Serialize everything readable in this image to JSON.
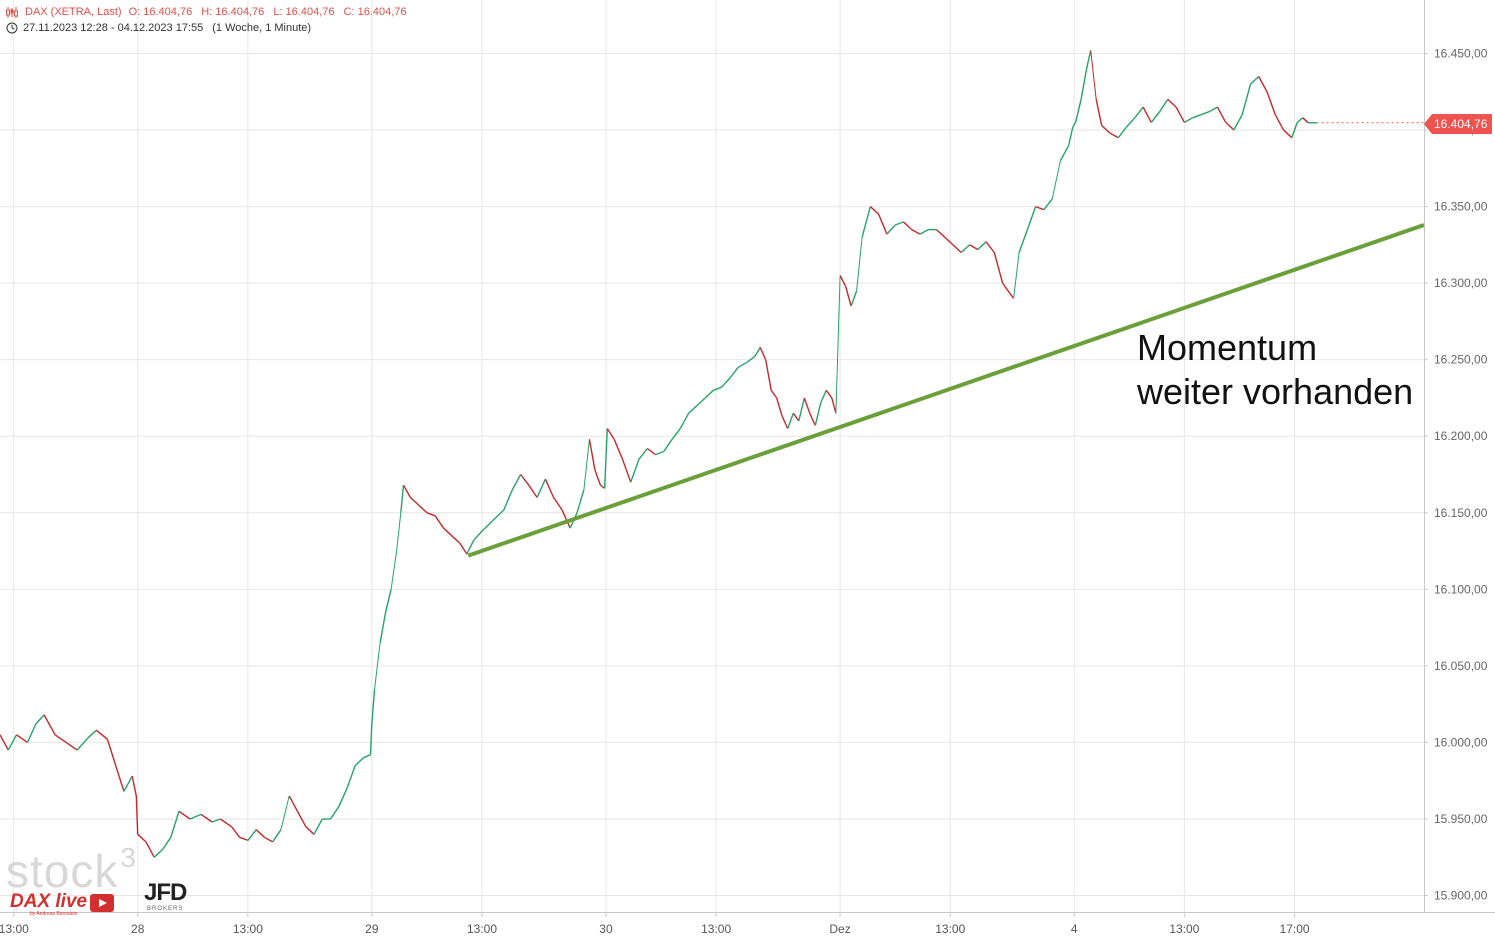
{
  "header": {
    "symbol": "DAX (XETRA, Last)",
    "open": "O: 16.404,76",
    "high": "H: 16.404,76",
    "low": "L: 16.404,76",
    "close": "C: 16.404,76",
    "period": "27.11.2023 12:28 - 04.12.2023 17:55",
    "interval": "(1 Woche, 1 Minute)"
  },
  "last_price_label": "16.404,76",
  "annotation_lines": [
    "Momentum",
    "weiter vorhanden"
  ],
  "watermark": "stock",
  "watermark_sup": "3",
  "branding": {
    "daxlive": "DAX live",
    "daxlive_sub": "by Andreas Bernstein",
    "jfd": "JFD",
    "jfd_sub": "BROKERS"
  },
  "colors": {
    "up": "#26a269",
    "down": "#c62828",
    "trendline": "#6a9f3a",
    "price_tag": "#ef5350",
    "grid": "#e6e6e6"
  },
  "chart_data": {
    "type": "line",
    "title": "DAX (XETRA, Last)",
    "ylim": [
      15880,
      16470
    ],
    "yticks": [
      15900,
      15950,
      16000,
      16050,
      16100,
      16150,
      16200,
      16250,
      16300,
      16350,
      16400,
      16450
    ],
    "ytick_labels": [
      "15.900,00",
      "15.950,00",
      "16.000,00",
      "16.050,00",
      "16.100,00",
      "16.150,00",
      "16.200,00",
      "16.250,00",
      "16.300,00",
      "16.350,00",
      "16.400,00",
      "16.450,00"
    ],
    "x_ticks": [
      {
        "label": "13:00",
        "t": 0.5
      },
      {
        "label": "28",
        "t": 5.0
      },
      {
        "label": "13:00",
        "t": 9.0
      },
      {
        "label": "29",
        "t": 13.5
      },
      {
        "label": "13:00",
        "t": 17.5
      },
      {
        "label": "30",
        "t": 22.0
      },
      {
        "label": "13:00",
        "t": 26.0
      },
      {
        "label": "Dez",
        "t": 30.5
      },
      {
        "label": "13:00",
        "t": 34.5
      },
      {
        "label": "4",
        "t": 39.0
      },
      {
        "label": "13:00",
        "t": 43.0
      },
      {
        "label": "17:00",
        "t": 47.0
      }
    ],
    "series": [
      {
        "values": [
          [
            0.0,
            16005
          ],
          [
            0.3,
            15995
          ],
          [
            0.6,
            16005
          ],
          [
            1.0,
            16000
          ],
          [
            1.3,
            16012
          ],
          [
            1.6,
            16018
          ],
          [
            2.0,
            16005
          ],
          [
            2.4,
            16000
          ],
          [
            2.8,
            15995
          ],
          [
            3.2,
            16003
          ],
          [
            3.5,
            16008
          ],
          [
            3.9,
            16002
          ],
          [
            4.2,
            15985
          ],
          [
            4.5,
            15968
          ],
          [
            4.8,
            15978
          ],
          [
            4.95,
            15965
          ],
          [
            5.0,
            15940
          ],
          [
            5.3,
            15935
          ],
          [
            5.6,
            15925
          ],
          [
            5.9,
            15930
          ],
          [
            6.2,
            15938
          ],
          [
            6.5,
            15955
          ],
          [
            6.9,
            15950
          ],
          [
            7.3,
            15953
          ],
          [
            7.7,
            15948
          ],
          [
            8.0,
            15950
          ],
          [
            8.4,
            15945
          ],
          [
            8.7,
            15938
          ],
          [
            9.0,
            15936
          ],
          [
            9.3,
            15943
          ],
          [
            9.6,
            15938
          ],
          [
            9.9,
            15935
          ],
          [
            10.2,
            15943
          ],
          [
            10.5,
            15965
          ],
          [
            10.8,
            15955
          ],
          [
            11.1,
            15945
          ],
          [
            11.4,
            15940
          ],
          [
            11.7,
            15950
          ],
          [
            12.0,
            15950
          ],
          [
            12.3,
            15958
          ],
          [
            12.6,
            15970
          ],
          [
            12.9,
            15985
          ],
          [
            13.2,
            15990
          ],
          [
            13.45,
            15992
          ],
          [
            13.5,
            16012
          ],
          [
            13.6,
            16035
          ],
          [
            13.8,
            16065
          ],
          [
            14.0,
            16085
          ],
          [
            14.2,
            16100
          ],
          [
            14.4,
            16125
          ],
          [
            14.55,
            16150
          ],
          [
            14.65,
            16168
          ],
          [
            14.9,
            16160
          ],
          [
            15.2,
            16155
          ],
          [
            15.5,
            16150
          ],
          [
            15.8,
            16148
          ],
          [
            16.1,
            16140
          ],
          [
            16.4,
            16135
          ],
          [
            16.7,
            16130
          ],
          [
            16.95,
            16123
          ],
          [
            17.2,
            16132
          ],
          [
            17.5,
            16138
          ],
          [
            17.9,
            16145
          ],
          [
            18.3,
            16152
          ],
          [
            18.6,
            16165
          ],
          [
            18.9,
            16175
          ],
          [
            19.2,
            16168
          ],
          [
            19.5,
            16160
          ],
          [
            19.8,
            16172
          ],
          [
            20.1,
            16160
          ],
          [
            20.4,
            16152
          ],
          [
            20.7,
            16140
          ],
          [
            20.95,
            16150
          ],
          [
            21.2,
            16165
          ],
          [
            21.4,
            16198
          ],
          [
            21.6,
            16178
          ],
          [
            21.8,
            16168
          ],
          [
            21.95,
            16166
          ],
          [
            22.05,
            16205
          ],
          [
            22.3,
            16198
          ],
          [
            22.6,
            16185
          ],
          [
            22.9,
            16170
          ],
          [
            23.2,
            16185
          ],
          [
            23.5,
            16192
          ],
          [
            23.8,
            16188
          ],
          [
            24.1,
            16190
          ],
          [
            24.4,
            16198
          ],
          [
            24.7,
            16205
          ],
          [
            25.0,
            16215
          ],
          [
            25.3,
            16220
          ],
          [
            25.6,
            16225
          ],
          [
            25.9,
            16230
          ],
          [
            26.2,
            16232
          ],
          [
            26.5,
            16238
          ],
          [
            26.8,
            16245
          ],
          [
            27.1,
            16248
          ],
          [
            27.4,
            16252
          ],
          [
            27.6,
            16258
          ],
          [
            27.8,
            16250
          ],
          [
            28.0,
            16230
          ],
          [
            28.2,
            16225
          ],
          [
            28.4,
            16213
          ],
          [
            28.6,
            16205
          ],
          [
            28.8,
            16215
          ],
          [
            29.0,
            16210
          ],
          [
            29.2,
            16225
          ],
          [
            29.4,
            16215
          ],
          [
            29.6,
            16207
          ],
          [
            29.8,
            16222
          ],
          [
            30.0,
            16230
          ],
          [
            30.2,
            16225
          ],
          [
            30.35,
            16215
          ],
          [
            30.5,
            16305
          ],
          [
            30.7,
            16298
          ],
          [
            30.9,
            16285
          ],
          [
            31.1,
            16295
          ],
          [
            31.3,
            16330
          ],
          [
            31.6,
            16350
          ],
          [
            31.9,
            16345
          ],
          [
            32.2,
            16332
          ],
          [
            32.5,
            16338
          ],
          [
            32.8,
            16340
          ],
          [
            33.1,
            16335
          ],
          [
            33.4,
            16332
          ],
          [
            33.7,
            16335
          ],
          [
            34.0,
            16335
          ],
          [
            34.3,
            16330
          ],
          [
            34.6,
            16325
          ],
          [
            34.9,
            16320
          ],
          [
            35.2,
            16325
          ],
          [
            35.5,
            16322
          ],
          [
            35.8,
            16327
          ],
          [
            36.1,
            16320
          ],
          [
            36.4,
            16300
          ],
          [
            36.6,
            16295
          ],
          [
            36.8,
            16290
          ],
          [
            37.0,
            16320
          ],
          [
            37.3,
            16335
          ],
          [
            37.6,
            16350
          ],
          [
            37.9,
            16348
          ],
          [
            38.2,
            16355
          ],
          [
            38.5,
            16380
          ],
          [
            38.8,
            16390
          ],
          [
            38.95,
            16402
          ],
          [
            39.05,
            16405
          ],
          [
            39.25,
            16420
          ],
          [
            39.45,
            16440
          ],
          [
            39.6,
            16452
          ],
          [
            39.8,
            16420
          ],
          [
            40.0,
            16403
          ],
          [
            40.3,
            16398
          ],
          [
            40.6,
            16395
          ],
          [
            40.9,
            16402
          ],
          [
            41.2,
            16408
          ],
          [
            41.5,
            16415
          ],
          [
            41.8,
            16405
          ],
          [
            42.1,
            16412
          ],
          [
            42.4,
            16420
          ],
          [
            42.7,
            16415
          ],
          [
            43.0,
            16405
          ],
          [
            43.3,
            16408
          ],
          [
            43.6,
            16410
          ],
          [
            43.9,
            16412
          ],
          [
            44.2,
            16415
          ],
          [
            44.5,
            16405
          ],
          [
            44.8,
            16400
          ],
          [
            45.1,
            16410
          ],
          [
            45.4,
            16430
          ],
          [
            45.7,
            16435
          ],
          [
            46.0,
            16425
          ],
          [
            46.3,
            16410
          ],
          [
            46.6,
            16400
          ],
          [
            46.9,
            16395
          ],
          [
            47.1,
            16405
          ],
          [
            47.3,
            16408
          ],
          [
            47.5,
            16404.76
          ],
          [
            47.8,
            16404.76
          ]
        ]
      }
    ],
    "trendline": {
      "start": [
        17.0,
        16122
      ],
      "end": [
        51.7,
        16338
      ]
    },
    "last_value": 16404.76,
    "grid": true
  }
}
